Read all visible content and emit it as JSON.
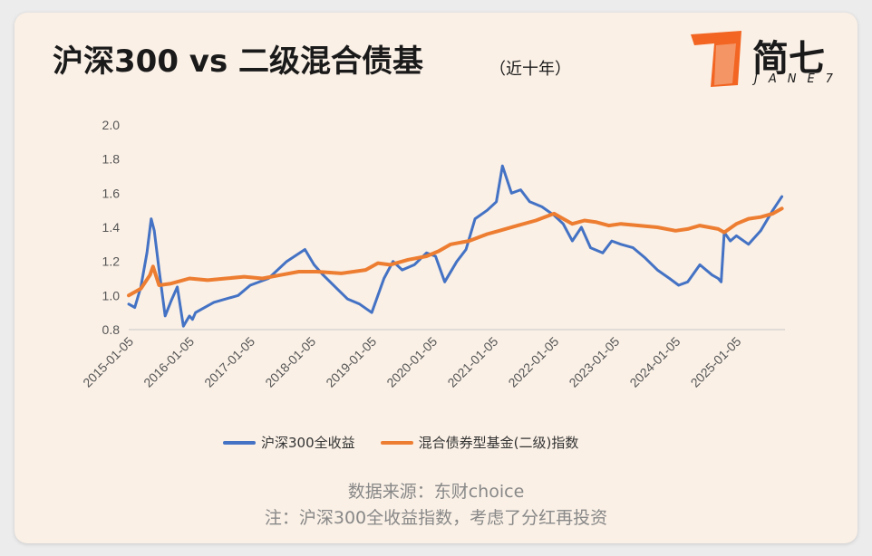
{
  "header": {
    "title": "沪深300 vs 二级混合债基",
    "subtitle": "（近十年）"
  },
  "logo": {
    "name": "简七",
    "sub": "JANE7"
  },
  "colors": {
    "series1": "#4472c4",
    "series2": "#ed7d31",
    "logo_accent": "#f26522"
  },
  "chart_data": {
    "type": "line",
    "title": "沪深300 vs 二级混合债基",
    "xlabel": "",
    "ylabel": "",
    "ylim": [
      0.8,
      2.0
    ],
    "yticks": [
      "0.8",
      "1.0",
      "1.2",
      "1.4",
      "1.6",
      "1.8",
      "2.0"
    ],
    "xlim": [
      2015.0,
      2025.8
    ],
    "xticks": [
      {
        "label": "2015-01-05",
        "x": 2015.0
      },
      {
        "label": "2016-01-05",
        "x": 2016.0
      },
      {
        "label": "2017-01-05",
        "x": 2017.0
      },
      {
        "label": "2018-01-05",
        "x": 2018.0
      },
      {
        "label": "2019-01-05",
        "x": 2019.0
      },
      {
        "label": "2020-01-05",
        "x": 2020.0
      },
      {
        "label": "2021-01-05",
        "x": 2021.0
      },
      {
        "label": "2022-01-05",
        "x": 2022.0
      },
      {
        "label": "2023-01-05",
        "x": 2023.0
      },
      {
        "label": "2024-01-05",
        "x": 2024.0
      },
      {
        "label": "2025-01-05",
        "x": 2025.0
      }
    ],
    "grid": false,
    "legend_position": "bottom",
    "series": [
      {
        "name": "沪深300全收益",
        "x": [
          2015.0,
          2015.1,
          2015.2,
          2015.3,
          2015.37,
          2015.42,
          2015.5,
          2015.6,
          2015.7,
          2015.8,
          2015.9,
          2016.0,
          2016.05,
          2016.1,
          2016.2,
          2016.4,
          2016.6,
          2016.8,
          2017.0,
          2017.3,
          2017.6,
          2017.9,
          2018.05,
          2018.2,
          2018.4,
          2018.6,
          2018.8,
          2019.0,
          2019.2,
          2019.35,
          2019.5,
          2019.7,
          2019.9,
          2020.05,
          2020.2,
          2020.4,
          2020.55,
          2020.7,
          2020.9,
          2021.05,
          2021.15,
          2021.3,
          2021.45,
          2021.6,
          2021.8,
          2022.0,
          2022.15,
          2022.3,
          2022.45,
          2022.6,
          2022.8,
          2022.95,
          2023.1,
          2023.3,
          2023.5,
          2023.7,
          2023.9,
          2024.05,
          2024.2,
          2024.4,
          2024.6,
          2024.7,
          2024.75,
          2024.8,
          2024.9,
          2025.0,
          2025.2,
          2025.4,
          2025.6,
          2025.75
        ],
        "values": [
          0.95,
          0.93,
          1.05,
          1.25,
          1.45,
          1.38,
          1.15,
          0.88,
          0.97,
          1.05,
          0.82,
          0.88,
          0.86,
          0.9,
          0.92,
          0.96,
          0.98,
          1.0,
          1.06,
          1.1,
          1.2,
          1.27,
          1.18,
          1.12,
          1.05,
          0.98,
          0.95,
          0.9,
          1.1,
          1.2,
          1.15,
          1.18,
          1.25,
          1.23,
          1.08,
          1.2,
          1.27,
          1.45,
          1.5,
          1.55,
          1.76,
          1.6,
          1.62,
          1.55,
          1.52,
          1.47,
          1.42,
          1.32,
          1.4,
          1.28,
          1.25,
          1.32,
          1.3,
          1.28,
          1.22,
          1.15,
          1.1,
          1.06,
          1.08,
          1.18,
          1.12,
          1.1,
          1.08,
          1.37,
          1.32,
          1.35,
          1.3,
          1.38,
          1.5,
          1.58
        ]
      },
      {
        "name": "混合债券型基金(二级)指数",
        "x": [
          2015.0,
          2015.2,
          2015.35,
          2015.4,
          2015.5,
          2015.7,
          2016.0,
          2016.3,
          2016.6,
          2016.9,
          2017.2,
          2017.5,
          2017.8,
          2018.1,
          2018.5,
          2018.9,
          2019.1,
          2019.3,
          2019.6,
          2019.9,
          2020.1,
          2020.3,
          2020.6,
          2020.9,
          2021.1,
          2021.4,
          2021.7,
          2022.0,
          2022.1,
          2022.3,
          2022.5,
          2022.7,
          2022.9,
          2023.1,
          2023.4,
          2023.7,
          2024.0,
          2024.2,
          2024.4,
          2024.7,
          2024.8,
          2025.0,
          2025.2,
          2025.4,
          2025.6,
          2025.75
        ],
        "values": [
          1.0,
          1.04,
          1.12,
          1.17,
          1.06,
          1.07,
          1.1,
          1.09,
          1.1,
          1.11,
          1.1,
          1.12,
          1.14,
          1.14,
          1.13,
          1.15,
          1.19,
          1.18,
          1.21,
          1.23,
          1.26,
          1.3,
          1.32,
          1.36,
          1.38,
          1.41,
          1.44,
          1.48,
          1.46,
          1.42,
          1.44,
          1.43,
          1.41,
          1.42,
          1.41,
          1.4,
          1.38,
          1.39,
          1.41,
          1.39,
          1.37,
          1.42,
          1.45,
          1.46,
          1.48,
          1.51
        ]
      }
    ]
  },
  "legend": {
    "items": [
      "沪深300全收益",
      "混合债券型基金(二级)指数"
    ]
  },
  "footer": {
    "source": "数据来源：东财choice",
    "note": "注：沪深300全收益指数，考虑了分红再投资"
  }
}
